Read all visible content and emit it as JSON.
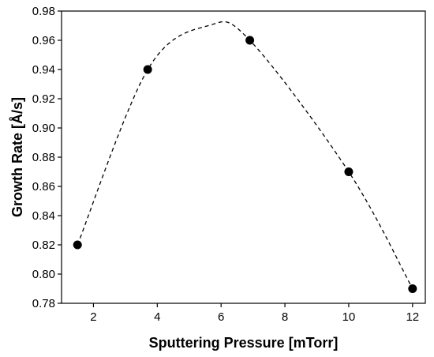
{
  "chart_data": {
    "type": "scatter",
    "title": "",
    "xlabel": "Sputtering Pressure [mTorr]",
    "ylabel": "Growth Rate [Å/s]",
    "xlim": [
      1,
      12.4
    ],
    "ylim": [
      0.78,
      0.98
    ],
    "xticks": [
      2,
      4,
      6,
      8,
      10,
      12
    ],
    "yticks": [
      0.78,
      0.8,
      0.82,
      0.84,
      0.86,
      0.88,
      0.9,
      0.92,
      0.94,
      0.96,
      0.98
    ],
    "x": [
      1.5,
      3.7,
      6.9,
      10.0,
      12.0
    ],
    "y": [
      0.82,
      0.94,
      0.96,
      0.87,
      0.79
    ],
    "fit_line": {
      "style": "dashed",
      "peak_x": 5.6,
      "peak_y": 0.97
    },
    "marker_color": "#000000",
    "grid": false
  }
}
